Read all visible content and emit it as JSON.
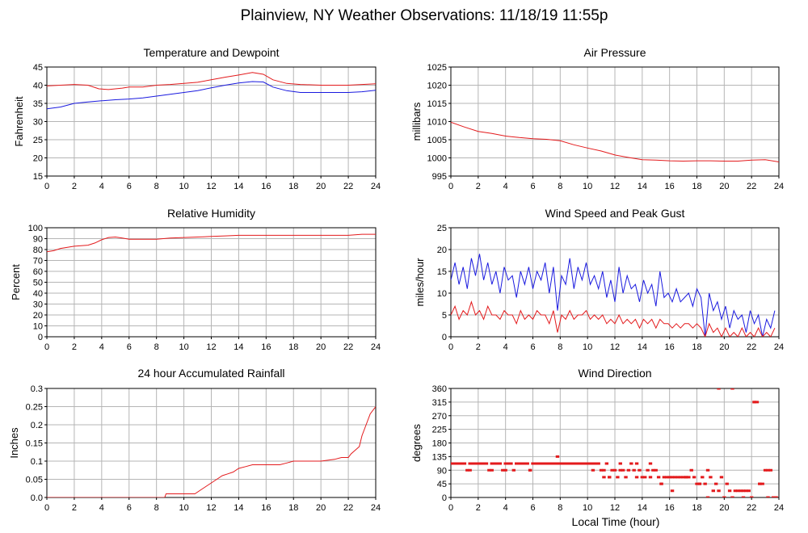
{
  "page": {
    "title": "Plainview, NY Weather Observations: 11/18/19 11:55p",
    "xlabel": "Local Time (hour)"
  },
  "colors": {
    "red": "#e31a1c",
    "blue": "#1a1adf",
    "grid": "#b5b5b5",
    "axis": "#000000"
  },
  "x_ticks": [
    0,
    2,
    4,
    6,
    8,
    10,
    12,
    14,
    16,
    18,
    20,
    22,
    24
  ],
  "chart_data": [
    {
      "id": "temperature",
      "type": "line",
      "title": "Temperature and Dewpoint",
      "ylabel": "Fahrenheit",
      "xlim": [
        0,
        24
      ],
      "ylim": [
        15,
        45
      ],
      "yticks": [
        "15",
        "20",
        "25",
        "30",
        "35",
        "40",
        "45"
      ],
      "series": [
        {
          "color": "red",
          "x": [
            0,
            1,
            2,
            3,
            3.8,
            4.5,
            5.5,
            6,
            7,
            8,
            9,
            10,
            11,
            12,
            13,
            14,
            15,
            15.8,
            16.5,
            17.5,
            18.5,
            20,
            21,
            22,
            23,
            24
          ],
          "values": [
            39.8,
            40,
            40.2,
            40,
            39,
            38.8,
            39.2,
            39.5,
            39.5,
            40,
            40.2,
            40.5,
            40.8,
            41.5,
            42.2,
            42.8,
            43.5,
            43,
            41.5,
            40.5,
            40.2,
            40,
            40,
            40,
            40.2,
            40.4
          ]
        },
        {
          "color": "blue",
          "x": [
            0,
            1,
            2,
            3,
            4,
            5,
            6,
            7,
            8,
            9,
            10,
            11,
            12,
            13,
            14,
            15,
            15.8,
            16.5,
            17.5,
            18.5,
            20,
            21,
            22,
            23,
            24
          ],
          "values": [
            33.5,
            34,
            35,
            35.4,
            35.7,
            36,
            36.2,
            36.5,
            37,
            37.5,
            38,
            38.5,
            39.3,
            40,
            40.6,
            41,
            40.9,
            39.5,
            38.5,
            38,
            38,
            38,
            38,
            38.2,
            38.6
          ]
        }
      ]
    },
    {
      "id": "pressure",
      "type": "line",
      "title": "Air Pressure",
      "ylabel": "millibars",
      "xlim": [
        0,
        24
      ],
      "ylim": [
        995,
        1025
      ],
      "yticks": [
        "995",
        "1000",
        "1005",
        "1010",
        "1015",
        "1020",
        "1025"
      ],
      "series": [
        {
          "color": "red",
          "x": [
            0,
            1,
            2,
            3,
            4,
            5,
            6,
            7,
            8,
            9,
            10,
            11,
            12,
            13,
            14,
            15,
            16,
            17,
            18,
            19,
            20,
            21,
            22,
            23,
            24
          ],
          "values": [
            1009.8,
            1008.5,
            1007.3,
            1006.7,
            1006,
            1005.6,
            1005.3,
            1005.1,
            1004.7,
            1003.6,
            1002.7,
            1001.9,
            1000.8,
            1000.1,
            999.5,
            999.4,
            999.2,
            999.1,
            999.2,
            999.2,
            999.1,
            999.1,
            999.4,
            999.5,
            998.9
          ]
        }
      ]
    },
    {
      "id": "humidity",
      "type": "line",
      "title": "Relative Humidity",
      "ylabel": "Percent",
      "xlim": [
        0,
        24
      ],
      "ylim": [
        0,
        100
      ],
      "yticks": [
        "0",
        "10",
        "20",
        "30",
        "40",
        "50",
        "60",
        "70",
        "80",
        "90",
        "100"
      ],
      "series": [
        {
          "color": "red",
          "x": [
            0,
            0.5,
            1,
            2,
            3,
            3.5,
            4,
            4.5,
            5,
            5.5,
            6,
            7,
            8,
            9,
            10,
            11,
            12,
            13,
            14,
            15,
            16,
            17,
            18,
            19,
            20,
            21,
            22,
            23,
            24
          ],
          "values": [
            78,
            79,
            81,
            83,
            84,
            86,
            89,
            91,
            91.5,
            90.5,
            89.5,
            89.5,
            89.5,
            90.5,
            91,
            91.5,
            92,
            92.5,
            93,
            93,
            93,
            93,
            93,
            93,
            93,
            93,
            93,
            94,
            94
          ]
        }
      ]
    },
    {
      "id": "wind",
      "type": "line",
      "title": "Wind Speed and Peak Gust",
      "ylabel": "miles/hour",
      "xlim": [
        0,
        24
      ],
      "ylim": [
        0,
        25
      ],
      "yticks": [
        "0",
        "5",
        "10",
        "15",
        "20",
        "25"
      ],
      "series": [
        {
          "color": "blue",
          "x": [
            0,
            0.3,
            0.6,
            0.9,
            1.2,
            1.5,
            1.8,
            2.1,
            2.4,
            2.7,
            3,
            3.3,
            3.6,
            3.9,
            4.2,
            4.5,
            4.8,
            5.1,
            5.4,
            5.7,
            6,
            6.3,
            6.6,
            6.9,
            7.2,
            7.5,
            7.8,
            8.1,
            8.4,
            8.7,
            9,
            9.3,
            9.6,
            9.9,
            10.2,
            10.5,
            10.8,
            11.1,
            11.4,
            11.7,
            12,
            12.3,
            12.6,
            12.9,
            13.2,
            13.5,
            13.8,
            14.1,
            14.4,
            14.7,
            15,
            15.3,
            15.6,
            15.9,
            16.2,
            16.5,
            16.8,
            17.1,
            17.4,
            17.7,
            18,
            18.3,
            18.6,
            18.9,
            19.2,
            19.5,
            19.8,
            20.1,
            20.4,
            20.7,
            21,
            21.3,
            21.6,
            21.9,
            22.2,
            22.5,
            22.8,
            23.1,
            23.4,
            23.7
          ],
          "values": [
            13,
            17,
            12,
            16,
            11,
            18,
            14,
            19,
            13,
            17,
            12,
            15,
            10,
            16,
            13,
            14,
            9,
            15,
            12,
            16,
            11,
            15,
            13,
            17,
            10,
            16,
            6,
            14,
            12,
            18,
            11,
            16,
            13,
            17,
            12,
            14,
            11,
            15,
            9,
            13,
            8,
            16,
            10,
            14,
            11,
            12,
            8,
            13,
            10,
            12,
            7,
            15,
            9,
            10,
            8,
            11,
            8,
            9,
            10,
            7,
            11,
            9,
            0,
            10,
            6,
            8,
            4,
            7,
            2,
            6,
            4,
            5,
            1,
            6,
            3,
            5,
            0,
            4,
            2,
            6
          ]
        },
        {
          "color": "red",
          "x": [
            0,
            0.3,
            0.6,
            0.9,
            1.2,
            1.5,
            1.8,
            2.1,
            2.4,
            2.7,
            3,
            3.3,
            3.6,
            3.9,
            4.2,
            4.5,
            4.8,
            5.1,
            5.4,
            5.7,
            6,
            6.3,
            6.6,
            6.9,
            7.2,
            7.5,
            7.8,
            8.1,
            8.4,
            8.7,
            9,
            9.3,
            9.6,
            9.9,
            10.2,
            10.5,
            10.8,
            11.1,
            11.4,
            11.7,
            12,
            12.3,
            12.6,
            12.9,
            13.2,
            13.5,
            13.8,
            14.1,
            14.4,
            14.7,
            15,
            15.3,
            15.6,
            15.9,
            16.2,
            16.5,
            16.8,
            17.1,
            17.4,
            17.7,
            18,
            18.3,
            18.6,
            18.9,
            19.2,
            19.5,
            19.8,
            20.1,
            20.4,
            20.7,
            21,
            21.3,
            21.6,
            21.9,
            22.2,
            22.5,
            22.8,
            23.1,
            23.4,
            23.7
          ],
          "values": [
            5,
            7,
            4,
            6,
            5,
            8,
            5,
            6,
            4,
            7,
            5,
            5,
            4,
            6,
            5,
            5,
            3,
            6,
            4,
            5,
            4,
            6,
            5,
            5,
            3,
            6,
            1,
            5,
            4,
            6,
            4,
            5,
            5,
            6,
            4,
            5,
            4,
            5,
            3,
            4,
            3,
            5,
            3,
            4,
            3,
            4,
            2,
            4,
            3,
            4,
            2,
            4,
            3,
            3,
            2,
            3,
            2,
            3,
            3,
            2,
            3,
            2,
            0,
            3,
            1,
            2,
            0,
            2,
            0,
            1,
            0,
            2,
            0,
            1,
            0,
            2,
            0,
            1,
            0,
            2
          ]
        }
      ]
    },
    {
      "id": "rainfall",
      "type": "line",
      "title": "24 hour Accumulated Rainfall",
      "ylabel": "Inches",
      "xlim": [
        0,
        24
      ],
      "ylim": [
        0,
        0.3
      ],
      "yticks": [
        "0.0",
        "0.05",
        "0.1",
        "0.15",
        "0.2",
        "0.25",
        "0.3"
      ],
      "series": [
        {
          "color": "red",
          "x": [
            0,
            8.6,
            8.7,
            10.8,
            11.2,
            11.6,
            12,
            12.4,
            12.8,
            13.2,
            13.6,
            14,
            14.5,
            15,
            16,
            17,
            17.5,
            18,
            19,
            20,
            21,
            21.5,
            22,
            22.2,
            22.5,
            22.8,
            23,
            23.3,
            23.6,
            24
          ],
          "values": [
            0,
            0,
            0.01,
            0.01,
            0.02,
            0.03,
            0.04,
            0.05,
            0.06,
            0.065,
            0.07,
            0.08,
            0.085,
            0.09,
            0.09,
            0.09,
            0.095,
            0.1,
            0.1,
            0.1,
            0.105,
            0.11,
            0.11,
            0.12,
            0.13,
            0.14,
            0.17,
            0.2,
            0.23,
            0.25
          ]
        }
      ]
    },
    {
      "id": "direction",
      "type": "scatter",
      "title": "Wind Direction",
      "ylabel": "degrees",
      "xlim": [
        0,
        24
      ],
      "ylim": [
        0,
        360
      ],
      "yticks": [
        "0",
        "45",
        "90",
        "135",
        "180",
        "225",
        "270",
        "315",
        "360"
      ],
      "series": [
        {
          "color": "red",
          "x": [
            0,
            0.2,
            0.4,
            0.6,
            0.8,
            1,
            1.2,
            1.4,
            1.6,
            1.8,
            2,
            2.2,
            2.4,
            2.6,
            2.8,
            3,
            3.2,
            3.4,
            3.6,
            3.8,
            4,
            4.2,
            4.4,
            4.6,
            4.8,
            5,
            5.2,
            5.4,
            5.6,
            5.8,
            6,
            6.2,
            6.4,
            6.6,
            6.8,
            7,
            7.2,
            7.4,
            7.6,
            7.8,
            8,
            8.2,
            8.4,
            8.6,
            8.8,
            9,
            9.2,
            9.4,
            9.6,
            9.8,
            10,
            10.2,
            10.4,
            10.6,
            10.8,
            11,
            11.2,
            11.4,
            11.6,
            11.8,
            12,
            12.2,
            12.4,
            12.6,
            12.8,
            13,
            13.2,
            13.4,
            13.6,
            13.8,
            14,
            14.2,
            14.4,
            14.6,
            14.8,
            15,
            15.2,
            15.4,
            15.6,
            15.8,
            16,
            16.2,
            16.4,
            16.6,
            16.8,
            17,
            17.2,
            17.4,
            17.6,
            17.8,
            18,
            18.2,
            18.4,
            18.6,
            18.8,
            19,
            19.2,
            19.4,
            19.6,
            19.8,
            20,
            20.2,
            20.4,
            20.6,
            20.8,
            21,
            21.2,
            21.4,
            21.6,
            21.8,
            22,
            22.2,
            22.4,
            22.6,
            22.8,
            23,
            23.2,
            23.4,
            23.6,
            23.8,
            1.4,
            3,
            4,
            5.8,
            7.8,
            10.4,
            11.2,
            11.6,
            12.4,
            13.6,
            14.6,
            15.4,
            16.2,
            17.2,
            18.2,
            18.8,
            19.6,
            20.6,
            21.4,
            22.2,
            22.6,
            23.2
          ],
          "values": [
            112,
            112,
            112,
            112,
            112,
            112,
            90,
            112,
            112,
            112,
            112,
            112,
            112,
            112,
            90,
            112,
            112,
            112,
            112,
            90,
            112,
            112,
            112,
            90,
            112,
            112,
            112,
            112,
            112,
            90,
            112,
            112,
            112,
            112,
            112,
            112,
            112,
            112,
            112,
            112,
            112,
            112,
            112,
            112,
            112,
            112,
            112,
            112,
            112,
            112,
            112,
            112,
            112,
            112,
            112,
            90,
            90,
            112,
            67,
            90,
            90,
            67,
            90,
            90,
            67,
            90,
            112,
            90,
            67,
            90,
            67,
            67,
            90,
            67,
            90,
            90,
            67,
            45,
            67,
            67,
            67,
            67,
            67,
            67,
            67,
            67,
            67,
            67,
            90,
            67,
            45,
            45,
            67,
            45,
            90,
            67,
            22,
            45,
            22,
            67,
            0,
            45,
            22,
            0,
            22,
            22,
            22,
            22,
            22,
            22,
            0,
            315,
            315,
            45,
            45,
            90,
            90,
            90,
            0,
            0,
            90,
            90,
            90,
            90,
            135,
            90,
            67,
            67,
            112,
            112,
            112,
            45,
            22,
            67,
            45,
            0,
            360,
            360,
            0,
            315,
            45,
            0
          ]
        }
      ]
    }
  ]
}
